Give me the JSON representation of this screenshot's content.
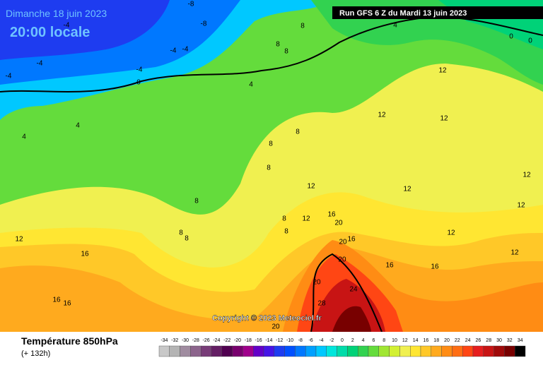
{
  "header": {
    "date": "Dimanche 18 juin 2023",
    "time": "20:00 locale",
    "run": "Run GFS 6 Z du Mardi 13 juin 2023"
  },
  "footer": {
    "title": "Température 850hPa",
    "subtitle": "(+ 132h)",
    "copyright": "Copyright © 2023 Meteociel.fr"
  },
  "scale": {
    "labels": [
      -34,
      -32,
      -30,
      -28,
      -26,
      -24,
      -22,
      -20,
      -18,
      -16,
      -14,
      -12,
      -10,
      -8,
      -6,
      -4,
      -2,
      0,
      2,
      4,
      6,
      8,
      10,
      12,
      14,
      16,
      18,
      20,
      22,
      24,
      26,
      28,
      30,
      32,
      34
    ],
    "colors": [
      "#c8c8c8",
      "#b4b4b4",
      "#a08ca0",
      "#8c648c",
      "#783c78",
      "#641e64",
      "#500050",
      "#78006e",
      "#a0008c",
      "#6400c8",
      "#4614e6",
      "#1e3cf0",
      "#0050ff",
      "#0078ff",
      "#00a0ff",
      "#00c8ff",
      "#00e6dc",
      "#00dcaa",
      "#00d278",
      "#32d250",
      "#64dc3c",
      "#a0e632",
      "#d2f032",
      "#f0f050",
      "#ffe632",
      "#ffc828",
      "#ffaa1e",
      "#ff8c14",
      "#ff6e14",
      "#ff4614",
      "#e61e1e",
      "#c81414",
      "#a00a0a",
      "#780000",
      "#000000"
    ]
  },
  "map": {
    "contour_labels": [
      -8,
      -8,
      -4,
      -4,
      -4,
      -4,
      -4,
      -4,
      0,
      4,
      4,
      4,
      8,
      8,
      8,
      8,
      8,
      8,
      8,
      8,
      8,
      8,
      8,
      12,
      12,
      12,
      12,
      12,
      12,
      12,
      12,
      12,
      12,
      12,
      16,
      16,
      16,
      16,
      16,
      16,
      16,
      20,
      20,
      20,
      20,
      24,
      28,
      20,
      4,
      0,
      0
    ]
  }
}
